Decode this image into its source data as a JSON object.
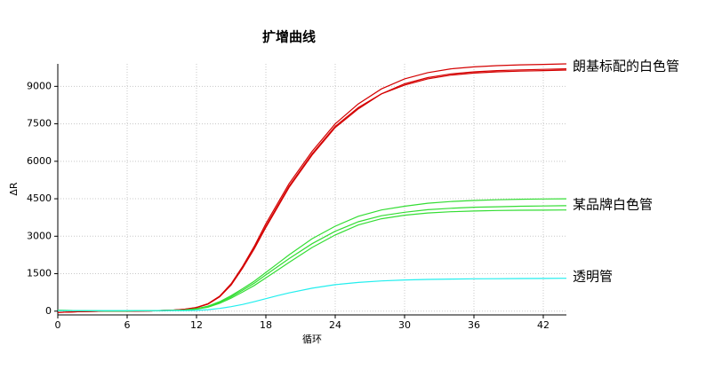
{
  "chart_data": {
    "type": "line",
    "title": "扩增曲线",
    "x_label": "循环",
    "y_label": "ΔR",
    "x": [
      0,
      2,
      4,
      6,
      8,
      10,
      11,
      12,
      13,
      14,
      15,
      16,
      17,
      18,
      19,
      20,
      22,
      24,
      26,
      28,
      30,
      32,
      34,
      36,
      38,
      40,
      42,
      44
    ],
    "series": [
      {
        "color": "#d40000",
        "values": [
          -50,
          -20,
          0,
          0,
          10,
          40,
          80,
          150,
          300,
          600,
          1100,
          1800,
          2600,
          3500,
          4300,
          5100,
          6400,
          7500,
          8300,
          8900,
          9300,
          9550,
          9700,
          9780,
          9830,
          9860,
          9880,
          9900
        ]
      },
      {
        "color": "#d40000",
        "values": [
          -50,
          -20,
          0,
          0,
          10,
          40,
          75,
          140,
          290,
          580,
          1060,
          1750,
          2520,
          3400,
          4200,
          5000,
          6300,
          7400,
          8150,
          8700,
          9050,
          9300,
          9450,
          9530,
          9580,
          9610,
          9630,
          9650
        ]
      },
      {
        "color": "#d40000",
        "values": [
          -50,
          -20,
          0,
          0,
          10,
          40,
          75,
          140,
          285,
          570,
          1050,
          1730,
          2500,
          3350,
          4150,
          4950,
          6250,
          7350,
          8100,
          8700,
          9100,
          9350,
          9500,
          9580,
          9630,
          9660,
          9680,
          9700
        ]
      },
      {
        "color": "#33dd33",
        "values": [
          30,
          20,
          10,
          10,
          20,
          30,
          50,
          100,
          200,
          380,
          620,
          900,
          1200,
          1550,
          1900,
          2250,
          2900,
          3400,
          3800,
          4050,
          4200,
          4320,
          4390,
          4430,
          4460,
          4480,
          4490,
          4500
        ]
      },
      {
        "color": "#33dd33",
        "values": [
          30,
          20,
          10,
          10,
          20,
          30,
          45,
          90,
          180,
          350,
          570,
          840,
          1120,
          1450,
          1780,
          2100,
          2700,
          3200,
          3580,
          3820,
          3960,
          4060,
          4120,
          4160,
          4180,
          4200,
          4210,
          4220
        ]
      },
      {
        "color": "#33dd33",
        "values": [
          30,
          20,
          10,
          10,
          20,
          30,
          40,
          80,
          160,
          310,
          520,
          770,
          1030,
          1330,
          1640,
          1950,
          2550,
          3050,
          3450,
          3700,
          3840,
          3930,
          3980,
          4010,
          4030,
          4040,
          4045,
          4050
        ]
      },
      {
        "color": "#22eeee",
        "values": [
          20,
          20,
          20,
          20,
          20,
          25,
          25,
          30,
          60,
          110,
          180,
          270,
          380,
          500,
          620,
          730,
          920,
          1060,
          1150,
          1210,
          1250,
          1270,
          1285,
          1295,
          1300,
          1305,
          1310,
          1315
        ]
      }
    ],
    "annotations": [
      "朗基标配的白色管",
      "某品牌白色管",
      "透明管"
    ],
    "xlim": [
      0,
      44
    ],
    "xticks": [
      0,
      6,
      12,
      18,
      24,
      30,
      36,
      42
    ],
    "ylim": [
      -150,
      9900
    ],
    "yticks": [
      0,
      1500,
      3000,
      4500,
      6000,
      7500,
      9000
    ],
    "grid": true
  }
}
